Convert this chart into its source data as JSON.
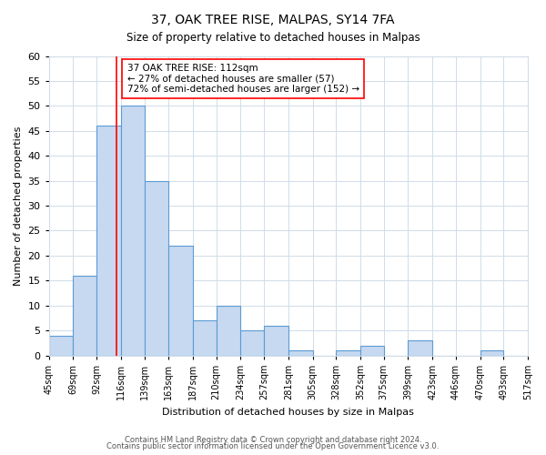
{
  "title": "37, OAK TREE RISE, MALPAS, SY14 7FA",
  "subtitle": "Size of property relative to detached houses in Malpas",
  "xlabel": "Distribution of detached houses by size in Malpas",
  "ylabel": "Number of detached properties",
  "bar_edges": [
    45,
    69,
    92,
    116,
    139,
    163,
    187,
    210,
    234,
    257,
    281,
    305,
    328,
    352,
    375,
    399,
    423,
    446,
    470,
    493,
    517
  ],
  "bar_heights": [
    4,
    16,
    46,
    50,
    35,
    22,
    7,
    10,
    5,
    6,
    1,
    0,
    1,
    2,
    0,
    3,
    0,
    0,
    1,
    0
  ],
  "bar_color": "#c6d9f0",
  "bar_edge_color": "#5b9bd5",
  "vline_x": 112,
  "vline_color": "red",
  "ylim": [
    0,
    60
  ],
  "yticks": [
    0,
    5,
    10,
    15,
    20,
    25,
    30,
    35,
    40,
    45,
    50,
    55,
    60
  ],
  "annotation_text": "37 OAK TREE RISE: 112sqm\n← 27% of detached houses are smaller (57)\n72% of semi-detached houses are larger (152) →",
  "annotation_box_edgecolor": "red",
  "footer_line1": "Contains HM Land Registry data © Crown copyright and database right 2024.",
  "footer_line2": "Contains public sector information licensed under the Open Government Licence v3.0.",
  "tick_labels": [
    "45sqm",
    "69sqm",
    "92sqm",
    "116sqm",
    "139sqm",
    "163sqm",
    "187sqm",
    "210sqm",
    "234sqm",
    "257sqm",
    "281sqm",
    "305sqm",
    "328sqm",
    "352sqm",
    "375sqm",
    "399sqm",
    "423sqm",
    "446sqm",
    "470sqm",
    "493sqm",
    "517sqm"
  ],
  "background_color": "#ffffff",
  "grid_color": "#d0dce8"
}
